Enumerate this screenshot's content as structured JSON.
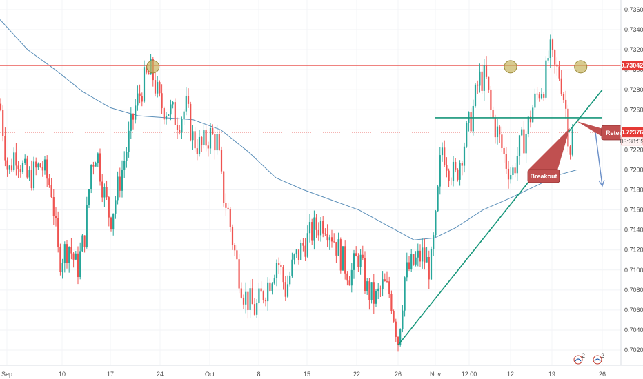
{
  "chart_data": {
    "type": "candlestick",
    "x_ticks": [
      "Sep",
      "10",
      "17",
      "24",
      "Oct",
      "8",
      "15",
      "22",
      "26",
      "Nov",
      "12:00",
      "12",
      "19",
      "26"
    ],
    "y_ticks": [
      "0.73600",
      "0.73400",
      "0.73200",
      "0.73000",
      "0.72800",
      "0.72600",
      "0.72400",
      "0.72200",
      "0.72000",
      "0.71800",
      "0.71600",
      "0.71400",
      "0.71200",
      "0.71000",
      "0.70800",
      "0.70600",
      "0.70400",
      "0.70200"
    ],
    "ylim": [
      0.7015,
      0.7368
    ],
    "price_lines": [
      {
        "label": "0.73042",
        "value": 0.73042,
        "color": "#e53935"
      },
      {
        "label": "0.72376",
        "value": 0.72376,
        "color": "#e53935",
        "dotted": true
      }
    ],
    "countdown": "03:38:59",
    "annotations": {
      "breakout_label": "Breakout",
      "retest_label": "Retest"
    },
    "anchors": [
      {
        "date": "Sep 23",
        "value": 0.7303
      },
      {
        "date": "Nov 08",
        "value": 0.7303
      },
      {
        "date": "Nov 19",
        "value": 0.7303
      }
    ],
    "trendline": {
      "from": {
        "date": "Oct 26",
        "value": 0.7025
      },
      "to": {
        "date": "Nov 23",
        "value": 0.728
      }
    },
    "neckline": {
      "from": {
        "date": "Nov 01",
        "value": 0.7252
      },
      "to": {
        "date": "Nov 23",
        "value": 0.7252
      }
    },
    "projection": {
      "from": {
        "date": "Nov 21",
        "value": 0.724
      },
      "to": {
        "date": "Nov 23",
        "value": 0.7184
      }
    },
    "colors": {
      "up": "#26a69a",
      "down": "#ef5350",
      "ma": "#5b8fb9",
      "resistance": "#e53935",
      "trend": "#16967a",
      "marker_fill": "#c8b560",
      "callout": "#c05050",
      "projection": "#6a8fc8"
    },
    "footer_badges": [
      "2",
      "2"
    ]
  }
}
